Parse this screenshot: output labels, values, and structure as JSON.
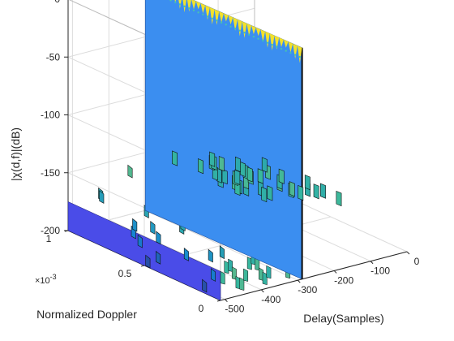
{
  "chart_data": {
    "type": "surface",
    "title": "",
    "xlabel": "Delay(Samples)",
    "ylabel": "Normalized Doppler",
    "zlabel": "|χ(d,f)|(dB)",
    "y_exponent_label": "×10",
    "y_exponent_power": "-3",
    "xlim": [
      -512,
      0
    ],
    "ylim": [
      0,
      0.001
    ],
    "zlim": [
      -200,
      0
    ],
    "x_ticks": [
      {
        "value": -500,
        "label": "-500"
      },
      {
        "value": -400,
        "label": "-400"
      },
      {
        "value": -300,
        "label": "-300"
      },
      {
        "value": -200,
        "label": "-200"
      },
      {
        "value": -100,
        "label": "-100"
      },
      {
        "value": 0,
        "label": "0"
      }
    ],
    "y_ticks": [
      {
        "value": 0,
        "label": "0"
      },
      {
        "value": 0.0005,
        "label": "0.5"
      },
      {
        "value": 0.001,
        "label": "1"
      }
    ],
    "z_ticks": [
      {
        "value": 0,
        "label": "0"
      },
      {
        "value": -50,
        "label": "-50"
      },
      {
        "value": -100,
        "label": "-100"
      },
      {
        "value": -150,
        "label": "-150"
      },
      {
        "value": -200,
        "label": "-200"
      }
    ],
    "grid": true,
    "colormap": "parula",
    "wall": {
      "delay": -300,
      "doppler_range": [
        0,
        0.001
      ],
      "z_top": 0,
      "z_bottom": -200,
      "color": "#3b8ef0",
      "ripple_color": "#f2e12c",
      "ripple_count": 34
    },
    "left_ridge_profile": [
      {
        "delay": -512,
        "z": -195
      },
      {
        "delay": -480,
        "z": -175
      },
      {
        "delay": -440,
        "z": -165
      },
      {
        "delay": -400,
        "z": -160
      },
      {
        "delay": -360,
        "z": -150
      },
      {
        "delay": -330,
        "z": -135
      },
      {
        "delay": -305,
        "z": -120
      }
    ],
    "right_ridge_profile": [
      {
        "delay": -295,
        "z": -140
      },
      {
        "delay": -250,
        "z": -150
      },
      {
        "delay": -200,
        "z": -158
      },
      {
        "delay": -150,
        "z": -163
      },
      {
        "delay": -100,
        "z": -168
      },
      {
        "delay": -50,
        "z": -172
      },
      {
        "delay": 0,
        "z": -176
      }
    ],
    "floor_slab": {
      "delay": -512,
      "doppler_range": [
        0,
        0.001
      ],
      "z_top": -175,
      "z_bottom": -200,
      "color": "#4a4ce8"
    }
  }
}
